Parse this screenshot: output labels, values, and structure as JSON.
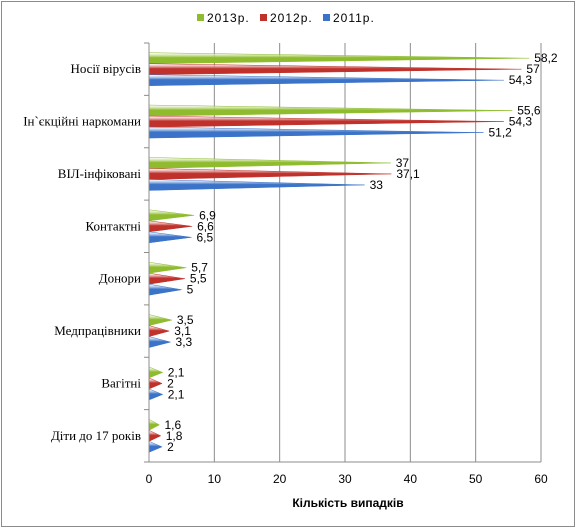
{
  "chart_data": {
    "type": "bar",
    "orientation": "horizontal",
    "bar_shape": "cone",
    "categories": [
      "Носії вірусів",
      "Ін`єкційні наркомани",
      "ВІЛ-інфіковані",
      "Контактні",
      "Донори",
      "Медпрацівники",
      "Вагітні",
      "Діти до 17 років"
    ],
    "series": [
      {
        "name": "2013р.",
        "color": "#8fbc2f",
        "values": [
          58.2,
          55.6,
          37,
          6.9,
          5.7,
          3.5,
          2.1,
          1.6
        ],
        "labels": [
          "58,2",
          "55,6",
          "37",
          "6,9",
          "5,7",
          "3,5",
          "2,1",
          "1,6"
        ]
      },
      {
        "name": "2012р.",
        "color": "#c0312b",
        "values": [
          57,
          54.3,
          37.1,
          6.6,
          5.5,
          3.1,
          2,
          1.8
        ],
        "labels": [
          "57",
          "54,3",
          "37,1",
          "6,6",
          "5,5",
          "3,1",
          "2",
          "1,8"
        ]
      },
      {
        "name": "2011р.",
        "color": "#3b73c8",
        "values": [
          54.3,
          51.2,
          33,
          6.5,
          5,
          3.3,
          2.1,
          2
        ],
        "labels": [
          "54,3",
          "51,2",
          "33",
          "6,5",
          "5",
          "3,3",
          "2,1",
          "2"
        ]
      }
    ],
    "x_ticks": [
      "0",
      "10",
      "20",
      "30",
      "40",
      "50",
      "60"
    ],
    "xlim": [
      0,
      60
    ],
    "xlabel": "Кількість випадків",
    "ylabel": "",
    "title": "",
    "grid": "vertical",
    "legend": "top-center"
  }
}
